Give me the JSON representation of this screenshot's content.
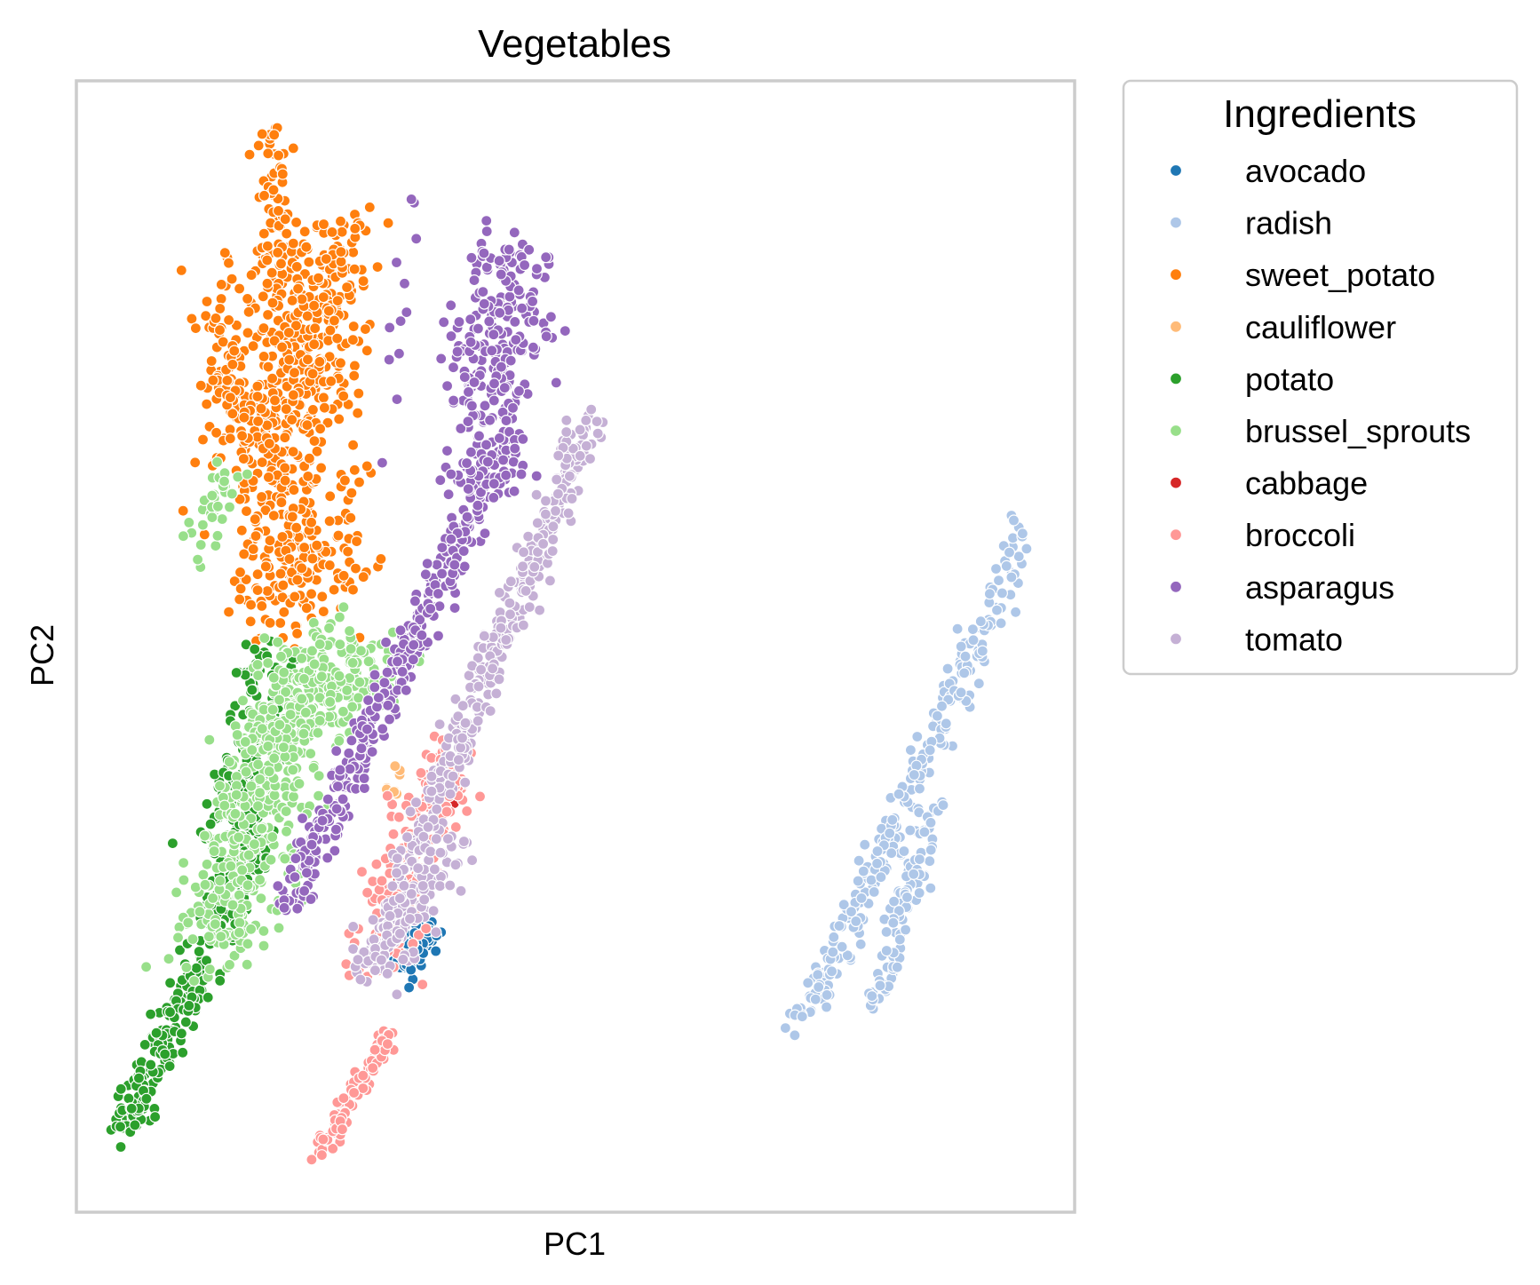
{
  "chart_data": {
    "type": "scatter",
    "title": "Vegetables",
    "xlabel": "PC1",
    "ylabel": "PC2",
    "xlim": [
      0,
      100
    ],
    "ylim": [
      0,
      100
    ],
    "grid": false,
    "ticks": false,
    "legend": {
      "title": "Ingredients",
      "placement": "outside-right-top"
    },
    "series": [
      {
        "name": "avocado",
        "color": "#1f77b4",
        "clusters": [
          {
            "x0": 32.2,
            "y0": 20.9,
            "x1": 35.7,
            "y1": 26.2,
            "spread": 0.9,
            "n": 60
          }
        ]
      },
      {
        "name": "radish",
        "color": "#aec7e8",
        "clusters": [
          {
            "x0": 72.8,
            "y0": 16.3,
            "x1": 95.4,
            "y1": 60.9,
            "spread": 0.9,
            "n": 260
          },
          {
            "x0": 79.9,
            "y0": 17.8,
            "x1": 85.7,
            "y1": 35.8,
            "spread": 0.7,
            "n": 90
          }
        ]
      },
      {
        "name": "sweet_potato",
        "color": "#ff7f0e",
        "clusters": [
          {
            "x0": 22.5,
            "y0": 53.0,
            "x1": 20.1,
            "y1": 85.3,
            "spread": 3.4,
            "n": 520
          },
          {
            "x0": 22.3,
            "y0": 70.0,
            "x1": 26.7,
            "y1": 87.5,
            "spread": 1.9,
            "n": 160
          },
          {
            "x0": 20.5,
            "y0": 85.5,
            "x1": 19.7,
            "y1": 95.8,
            "spread": 0.9,
            "n": 45
          },
          {
            "x0": 16.7,
            "y0": 68.8,
            "x1": 13.5,
            "y1": 79.5,
            "spread": 1.2,
            "n": 60
          }
        ]
      },
      {
        "name": "cauliflower",
        "color": "#ffbb78",
        "clusters": [
          {
            "x0": 31.4,
            "y0": 37.0,
            "x1": 32.8,
            "y1": 39.2,
            "spread": 0.5,
            "n": 8
          }
        ]
      },
      {
        "name": "potato",
        "color": "#2ca02c",
        "clusters": [
          {
            "x0": 4.6,
            "y0": 7.0,
            "x1": 18.9,
            "y1": 34.0,
            "spread": 1.1,
            "n": 300
          },
          {
            "x0": 14.8,
            "y0": 32.0,
            "x1": 19.7,
            "y1": 50.0,
            "spread": 1.8,
            "n": 150
          }
        ]
      },
      {
        "name": "brussel_sprouts",
        "color": "#98df8a",
        "clusters": [
          {
            "x0": 13.3,
            "y0": 23.0,
            "x1": 24.4,
            "y1": 51.0,
            "spread": 2.6,
            "n": 420
          },
          {
            "x0": 16.8,
            "y0": 40.5,
            "x1": 32.8,
            "y1": 50.0,
            "spread": 2.0,
            "n": 160
          },
          {
            "x0": 11.8,
            "y0": 58.0,
            "x1": 16.4,
            "y1": 66.0,
            "spread": 1.0,
            "n": 35
          }
        ]
      },
      {
        "name": "cabbage",
        "color": "#d62728",
        "clusters": [
          {
            "x0": 31.4,
            "y0": 29.0,
            "x1": 37.6,
            "y1": 36.5,
            "spread": 0.5,
            "n": 10
          }
        ]
      },
      {
        "name": "broccoli",
        "color": "#ff9896",
        "clusters": [
          {
            "x0": 29.5,
            "y0": 21.0,
            "x1": 37.7,
            "y1": 41.3,
            "spread": 1.6,
            "n": 200
          },
          {
            "x0": 24.4,
            "y0": 5.0,
            "x1": 31.4,
            "y1": 16.0,
            "spread": 0.6,
            "n": 90
          }
        ]
      },
      {
        "name": "asparagus",
        "color": "#9467bd",
        "clusters": [
          {
            "x0": 21.1,
            "y0": 27.0,
            "x1": 40.9,
            "y1": 64.0,
            "spread": 0.9,
            "n": 330
          },
          {
            "x0": 40.6,
            "y0": 64.0,
            "x1": 43.7,
            "y1": 86.3,
            "spread": 2.3,
            "n": 280
          },
          {
            "x0": 30.0,
            "y0": 61.0,
            "x1": 34.0,
            "y1": 91.0,
            "spread": 0.8,
            "n": 12
          }
        ]
      },
      {
        "name": "tomato",
        "color": "#c5b0d5",
        "clusters": [
          {
            "x0": 29.2,
            "y0": 21.5,
            "x1": 51.3,
            "y1": 70.0,
            "spread": 0.9,
            "n": 400
          },
          {
            "x0": 30.0,
            "y0": 21.0,
            "x1": 38.0,
            "y1": 33.0,
            "spread": 1.4,
            "n": 90
          }
        ]
      }
    ]
  }
}
